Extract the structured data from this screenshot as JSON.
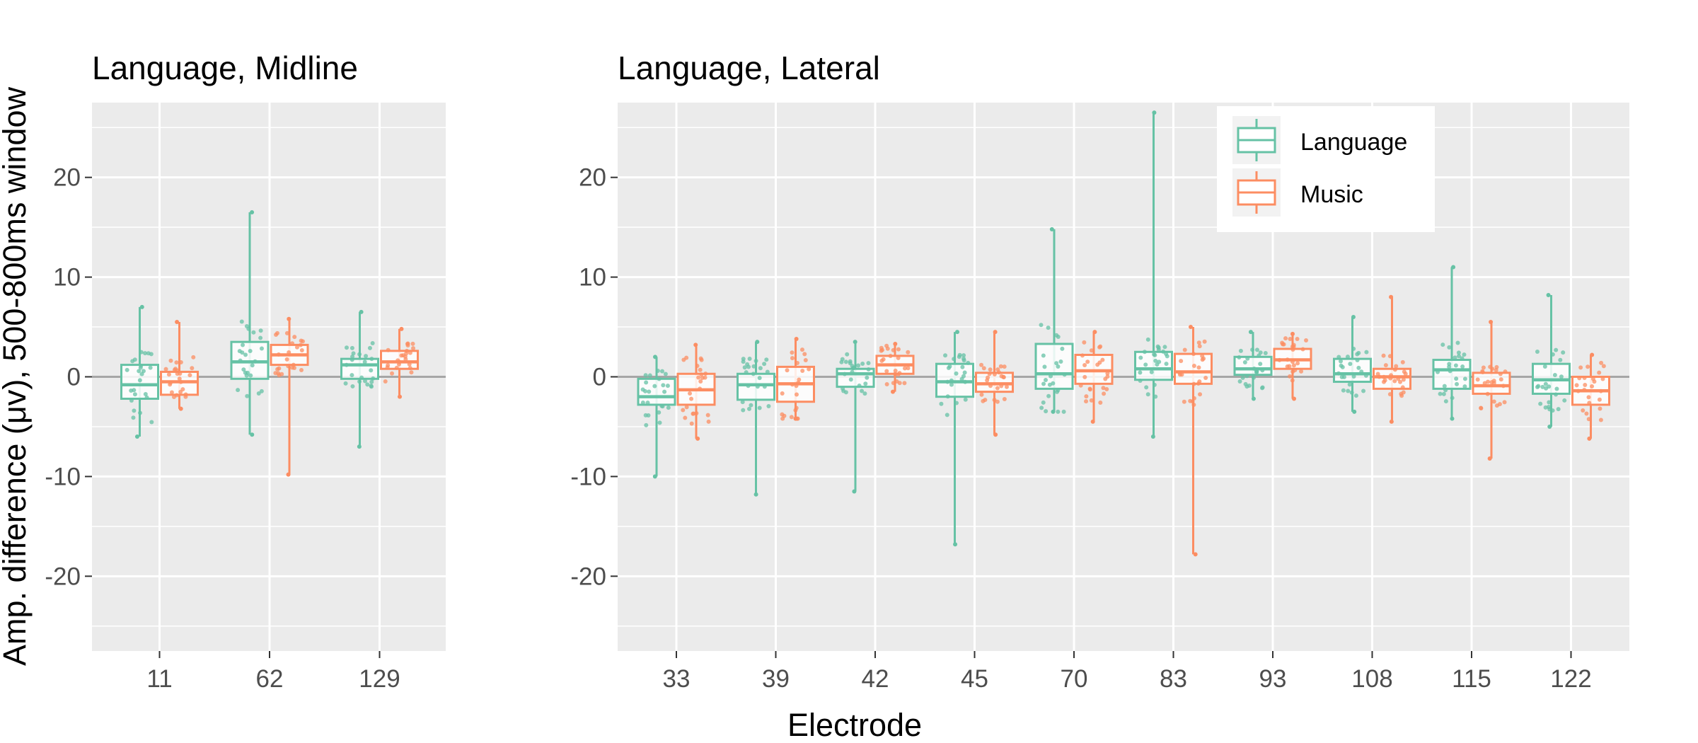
{
  "figure": {
    "ylabel": "Amp. difference (μv), 500-800ms window",
    "xlabel": "Electrode"
  },
  "legend": {
    "items": [
      {
        "label": "Language",
        "color": "#66c2a5"
      },
      {
        "label": "Music",
        "color": "#fc8d62"
      }
    ]
  },
  "chart_data": [
    {
      "type": "box",
      "title": "Language, Midline",
      "xlabel": "Electrode",
      "ylabel": "Amp. difference (μv), 500-800ms window",
      "ylim": [
        -27.5,
        27.5
      ],
      "yticks": [
        -20,
        -10,
        0,
        10,
        20
      ],
      "grid": true,
      "reference_line": 0,
      "categories": [
        "11",
        "62",
        "129"
      ],
      "series": [
        {
          "name": "Language",
          "color": "#66c2a5",
          "boxes": [
            {
              "min": -6,
              "q1": -2.2,
              "median": -0.8,
              "q3": 1.2,
              "max": 7
            },
            {
              "min": -5.8,
              "q1": -0.2,
              "median": 1.5,
              "q3": 3.5,
              "max": 16.5
            },
            {
              "min": -7,
              "q1": -0.2,
              "median": 1.2,
              "q3": 1.8,
              "max": 6.5
            }
          ]
        },
        {
          "name": "Music",
          "color": "#fc8d62",
          "boxes": [
            {
              "min": -3.2,
              "q1": -1.8,
              "median": -0.5,
              "q3": 0.5,
              "max": 5.5
            },
            {
              "min": -9.8,
              "q1": 1.2,
              "median": 2.2,
              "q3": 3.2,
              "max": 5.8
            },
            {
              "min": -2,
              "q1": 0.8,
              "median": 1.5,
              "q3": 2.6,
              "max": 4.8
            }
          ]
        }
      ]
    },
    {
      "type": "box",
      "title": "Language, Lateral",
      "xlabel": "Electrode",
      "ylabel": "Amp. difference (μv), 500-800ms window",
      "ylim": [
        -27.5,
        27.5
      ],
      "yticks": [
        -20,
        -10,
        0,
        10,
        20
      ],
      "grid": true,
      "reference_line": 0,
      "legend_position": "top-right",
      "categories": [
        "33",
        "39",
        "42",
        "45",
        "70",
        "83",
        "93",
        "108",
        "115",
        "122"
      ],
      "series": [
        {
          "name": "Language",
          "color": "#66c2a5",
          "boxes": [
            {
              "min": -10,
              "q1": -2.8,
              "median": -2,
              "q3": -0.2,
              "max": 2
            },
            {
              "min": -11.8,
              "q1": -2.3,
              "median": -0.8,
              "q3": 0.3,
              "max": 3.5
            },
            {
              "min": -11.5,
              "q1": -1,
              "median": 0.3,
              "q3": 0.8,
              "max": 3.5
            },
            {
              "min": -16.8,
              "q1": -2,
              "median": -0.5,
              "q3": 1.3,
              "max": 4.5
            },
            {
              "min": -3.5,
              "q1": -1.2,
              "median": 0.3,
              "q3": 3.3,
              "max": 14.8
            },
            {
              "min": -6,
              "q1": -0.3,
              "median": 0.8,
              "q3": 2.5,
              "max": 26.5
            },
            {
              "min": -2.2,
              "q1": 0.2,
              "median": 0.8,
              "q3": 2,
              "max": 4.5
            },
            {
              "min": -3.5,
              "q1": -0.5,
              "median": 0.3,
              "q3": 1.8,
              "max": 6
            },
            {
              "min": -4.2,
              "q1": -1.2,
              "median": 0.7,
              "q3": 1.7,
              "max": 11
            },
            {
              "min": -5,
              "q1": -1.7,
              "median": -0.3,
              "q3": 1.3,
              "max": 8.2
            }
          ]
        },
        {
          "name": "Music",
          "color": "#fc8d62",
          "boxes": [
            {
              "min": -6.2,
              "q1": -2.8,
              "median": -1.3,
              "q3": 0.3,
              "max": 3.2
            },
            {
              "min": -4.2,
              "q1": -2.5,
              "median": -0.7,
              "q3": 1,
              "max": 3.8
            },
            {
              "min": -1.5,
              "q1": 0.3,
              "median": 1.2,
              "q3": 2.1,
              "max": 3.3
            },
            {
              "min": -5.8,
              "q1": -1.5,
              "median": -0.7,
              "q3": 0.4,
              "max": 4.5
            },
            {
              "min": -4.5,
              "q1": -0.7,
              "median": 0.6,
              "q3": 2.2,
              "max": 4.5
            },
            {
              "min": -17.8,
              "q1": -0.7,
              "median": 0.5,
              "q3": 2.3,
              "max": 5
            },
            {
              "min": -2.2,
              "q1": 0.8,
              "median": 1.7,
              "q3": 2.8,
              "max": 4.3
            },
            {
              "min": -4.5,
              "q1": -1.2,
              "median": 0,
              "q3": 0.8,
              "max": 8
            },
            {
              "min": -8.2,
              "q1": -1.7,
              "median": -0.9,
              "q3": 0.4,
              "max": 5.5
            },
            {
              "min": -6.2,
              "q1": -2.8,
              "median": -1.4,
              "q3": 0,
              "max": 2.2
            }
          ]
        }
      ]
    }
  ]
}
